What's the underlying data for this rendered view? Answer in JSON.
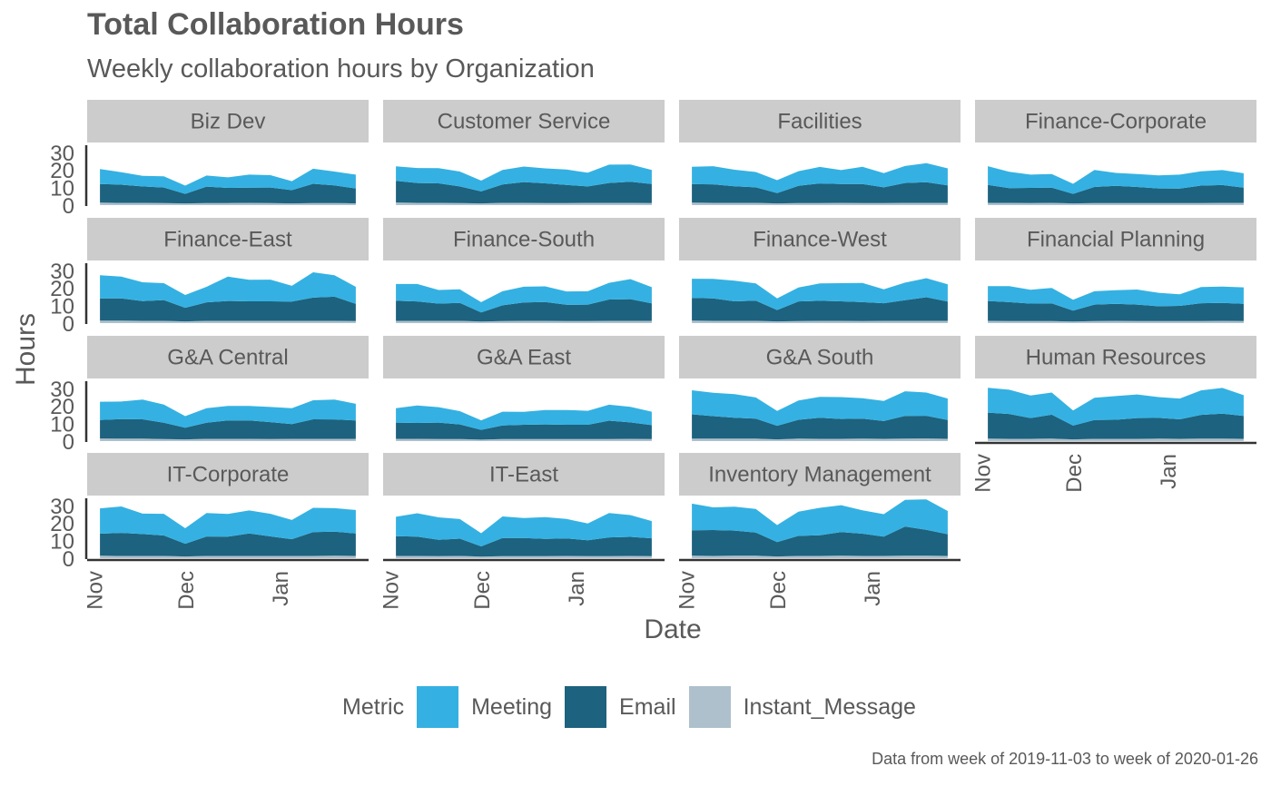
{
  "chart_data": {
    "type": "area",
    "title": "Total Collaboration Hours",
    "subtitle": "Weekly collaboration hours by Organization",
    "xlabel": "Date",
    "ylabel": "Hours",
    "caption": "Data from week of 2019-11-03 to week of 2020-01-26",
    "stacked": true,
    "facet_by": "Organization",
    "facet_cols": 4,
    "ylim": [
      0,
      33
    ],
    "y_ticks": [
      0,
      10,
      20,
      30
    ],
    "x_ticks": [
      {
        "label": "Nov",
        "date": "2019-11-01"
      },
      {
        "label": "Dec",
        "date": "2019-12-01"
      },
      {
        "label": "Jan",
        "date": "2020-01-01"
      }
    ],
    "x": [
      "2019-11-03",
      "2019-11-10",
      "2019-11-17",
      "2019-11-24",
      "2019-12-01",
      "2019-12-08",
      "2019-12-15",
      "2019-12-22",
      "2019-12-29",
      "2020-01-05",
      "2020-01-12",
      "2020-01-19",
      "2020-01-26"
    ],
    "legend": {
      "title": "Metric",
      "position": "bottom"
    },
    "metrics": [
      {
        "name": "Meeting",
        "color": "#34b1e2"
      },
      {
        "name": "Email",
        "color": "#1d627e"
      },
      {
        "name": "Instant_Message",
        "color": "#adc0cb"
      }
    ],
    "panels": [
      {
        "name": "Biz Dev",
        "Instant_Message": [
          1.4,
          1.3,
          1.3,
          1.2,
          1,
          1.2,
          1.2,
          1.3,
          1.2,
          1,
          1.2,
          1.2,
          1
        ],
        "Email": [
          10.6,
          10.3,
          9.3,
          8.8,
          5.4,
          9.3,
          8.6,
          8.6,
          8.8,
          7.5,
          10.9,
          10,
          8.5
        ],
        "Meeting": [
          8.5,
          7.1,
          6,
          6.4,
          4.7,
          6.3,
          6,
          7.4,
          7,
          5.1,
          8.6,
          7.9,
          7.8
        ]
      },
      {
        "name": "Customer Service",
        "Instant_Message": [
          1.5,
          1.3,
          1.3,
          1.2,
          1,
          1.3,
          1.3,
          1.2,
          1.2,
          1.3,
          1.3,
          1.3,
          1.2
        ],
        "Email": [
          12.3,
          11.3,
          11.1,
          9.4,
          6.8,
          10.4,
          11.8,
          11.2,
          10.3,
          9.3,
          11.3,
          12,
          10.8
        ],
        "Meeting": [
          8.2,
          8.5,
          8.6,
          8.5,
          6.1,
          8.3,
          8.8,
          8.5,
          8.7,
          7.8,
          10.4,
          9.8,
          8
        ]
      },
      {
        "name": "Facilities",
        "Instant_Message": [
          1.4,
          1.3,
          1.3,
          1.3,
          1,
          1.2,
          1.2,
          1.3,
          1.2,
          1.2,
          1.3,
          1.3,
          1.3
        ],
        "Email": [
          10.5,
          10.5,
          9.4,
          8.8,
          5.8,
          9.8,
          11.1,
          10.7,
          10.8,
          8.9,
          11.3,
          11.7,
          9.9
        ],
        "Meeting": [
          9.9,
          10.3,
          9.4,
          8.7,
          7.4,
          8.3,
          9.4,
          7.9,
          9.8,
          8.1,
          9.6,
          10.8,
          9.7
        ]
      },
      {
        "name": "Finance-Corporate",
        "Instant_Message": [
          1.3,
          1.3,
          1.2,
          1.3,
          1,
          1.2,
          1.2,
          1.2,
          1.2,
          1.2,
          1.2,
          1.3,
          1.3
        ],
        "Email": [
          10.2,
          8.4,
          8.6,
          8.6,
          5.4,
          9.1,
          9.8,
          9.1,
          8.3,
          8.2,
          9.9,
          10.1,
          8.6
        ],
        "Meeting": [
          10.6,
          9.2,
          7.5,
          7.8,
          5.7,
          9.7,
          7.3,
          7.4,
          7.4,
          7.9,
          8.1,
          8.5,
          8.2
        ]
      },
      {
        "name": "Finance-East",
        "Instant_Message": [
          1.4,
          1.4,
          1.3,
          1.3,
          1,
          1.3,
          1.3,
          1.3,
          1.3,
          1.3,
          1.3,
          1.3,
          1.2
        ],
        "Email": [
          12.7,
          12.7,
          11.2,
          11.8,
          7.7,
          10.5,
          11.3,
          11.1,
          11.1,
          10.9,
          13.2,
          13.7,
          9.8
        ],
        "Meeting": [
          13.1,
          12.3,
          10.7,
          9.6,
          7.3,
          8.8,
          13.8,
          12.2,
          12.3,
          9,
          14.4,
          12.2,
          9.6
        ]
      },
      {
        "name": "Finance-South",
        "Instant_Message": [
          1.3,
          1.3,
          1.3,
          1.3,
          0.9,
          1.2,
          1.3,
          1.3,
          1.2,
          1.2,
          1.3,
          1.3,
          1.3
        ],
        "Email": [
          11.4,
          11,
          9.8,
          10.2,
          5.2,
          8.9,
          10.4,
          10.7,
          9.2,
          9.3,
          12.1,
          12.3,
          9.9
        ],
        "Meeting": [
          9.5,
          9.9,
          7.7,
          7.7,
          5.8,
          8,
          9,
          8.9,
          7.6,
          7.6,
          9.5,
          11.4,
          9.2
        ]
      },
      {
        "name": "Finance-West",
        "Instant_Message": [
          1.4,
          1.3,
          1.3,
          1.3,
          1,
          1.2,
          1.3,
          1.3,
          1.2,
          1.3,
          1.3,
          1.3,
          1.3
        ],
        "Email": [
          12.9,
          12.8,
          11.1,
          11.5,
          6.4,
          11.1,
          11.4,
          11.1,
          10.7,
          10,
          11.7,
          13.4,
          10.9
        ],
        "Meeting": [
          10.9,
          11,
          11.7,
          9.8,
          6.6,
          7.9,
          9.9,
          10.3,
          10.9,
          7.9,
          10,
          10.8,
          9.8
        ]
      },
      {
        "name": "Financial Planning",
        "Instant_Message": [
          1.3,
          1.2,
          1.2,
          1.2,
          0.9,
          1.2,
          1.3,
          1.2,
          1.2,
          1.2,
          1.2,
          1.3,
          1.2
        ],
        "Email": [
          11.3,
          10.7,
          9.9,
          10,
          6.2,
          9.3,
          9.7,
          9.3,
          8.4,
          8.6,
          10.1,
          10.2,
          9.8
        ],
        "Meeting": [
          8.4,
          9.1,
          7.9,
          8.8,
          6.2,
          7.6,
          7.7,
          8.6,
          7.6,
          6.6,
          9.2,
          9.3,
          9.3
        ]
      },
      {
        "name": "G&A Central",
        "Instant_Message": [
          1.5,
          1.4,
          1.4,
          1.2,
          1,
          1.3,
          1.3,
          1.3,
          1.2,
          1.3,
          1.3,
          1.3,
          1.3
        ],
        "Email": [
          10.5,
          11.1,
          11,
          9.2,
          6.6,
          9.1,
          10.4,
          10.4,
          9.6,
          8.4,
          11.1,
          11,
          10.4
        ],
        "Meeting": [
          10.4,
          10,
          11.2,
          10.4,
          6.6,
          8.3,
          8.3,
          8.3,
          8.6,
          9,
          10.8,
          11.3,
          9.5
        ]
      },
      {
        "name": "G&A East",
        "Instant_Message": [
          1.3,
          1.3,
          1.2,
          1.2,
          0.8,
          1.2,
          1.2,
          1.2,
          1.2,
          1.2,
          1.2,
          1.3,
          1.2
        ],
        "Email": [
          9.2,
          9,
          9.3,
          8.3,
          5.6,
          7.7,
          8.1,
          8.3,
          8.1,
          8.1,
          10.4,
          9.3,
          7.9
        ],
        "Meeting": [
          8.2,
          9.9,
          8.8,
          7.5,
          5.4,
          7.8,
          7.3,
          8.2,
          8.4,
          7.9,
          9.1,
          8.9,
          7.6
        ]
      },
      {
        "name": "G&A South",
        "Instant_Message": [
          1.4,
          1.4,
          1.4,
          1.4,
          1,
          1.4,
          1.3,
          1.3,
          1.4,
          1.3,
          1.4,
          1.5,
          1.3
        ],
        "Email": [
          13.8,
          12.8,
          11.9,
          11.4,
          7.7,
          10.7,
          12,
          11.3,
          11.4,
          10.1,
          12.9,
          12.9,
          10.7
        ],
        "Meeting": [
          13.7,
          13.3,
          13.4,
          12,
          8.4,
          11,
          11.8,
          12.4,
          11.6,
          11.4,
          14,
          13.2,
          12.2
        ]
      },
      {
        "name": "Human Resources",
        "Instant_Message": [
          1.4,
          1.3,
          1.3,
          1.4,
          1,
          1.3,
          1.3,
          1.3,
          1.4,
          1.3,
          1.4,
          1.4,
          1.3
        ],
        "Email": [
          14.8,
          14.1,
          11.8,
          13.6,
          7.8,
          10.7,
          10.8,
          11.8,
          11.8,
          11.1,
          13.5,
          14.2,
          13
        ],
        "Meeting": [
          14.1,
          13.8,
          12.8,
          12.6,
          8.6,
          12.6,
          13.5,
          13.4,
          11.8,
          11.8,
          13.9,
          14.6,
          11.8
        ]
      },
      {
        "name": "IT-Corporate",
        "Instant_Message": [
          1.4,
          1.3,
          1.3,
          1.3,
          1,
          1.3,
          1.3,
          1.3,
          1.3,
          1.3,
          1.3,
          1.4,
          1.3
        ],
        "Email": [
          12.5,
          13.1,
          12.4,
          11.6,
          7.2,
          11,
          10.9,
          12.8,
          11.1,
          9.5,
          13.5,
          13.7,
          12.7
        ],
        "Meeting": [
          14.4,
          15,
          11.6,
          12.3,
          8.8,
          13.4,
          12.9,
          13,
          12.8,
          10.9,
          13.8,
          13.3,
          13.4
        ]
      },
      {
        "name": "IT-East",
        "Instant_Message": [
          1.3,
          1.3,
          1.2,
          1.3,
          0.9,
          1.2,
          1.2,
          1.2,
          1.3,
          1.2,
          1.2,
          1.3,
          1.2
        ],
        "Email": [
          11.2,
          10.9,
          9.2,
          9.8,
          5.8,
          10.3,
          10.3,
          9.8,
          9.9,
          9,
          10.6,
          10.8,
          10.1
        ],
        "Meeting": [
          11,
          13.3,
          12.8,
          11.1,
          7.5,
          12.2,
          11.3,
          12.3,
          11.1,
          9.5,
          13.9,
          12.4,
          9.8
        ]
      },
      {
        "name": "Inventory Management",
        "Instant_Message": [
          1.4,
          1.3,
          1.4,
          1.4,
          1,
          1.3,
          1.3,
          1.4,
          1.3,
          1.3,
          1.4,
          1.4,
          1.3
        ],
        "Email": [
          14.5,
          14.7,
          14.3,
          13.2,
          8.2,
          11.4,
          11.7,
          13.4,
          12.6,
          10.9,
          16.6,
          14.7,
          12.3
        ],
        "Meeting": [
          15.1,
          12.9,
          13.6,
          13.4,
          9.6,
          13.7,
          15.6,
          15.3,
          13.3,
          12.8,
          15.1,
          17.3,
          13.2
        ]
      }
    ]
  }
}
